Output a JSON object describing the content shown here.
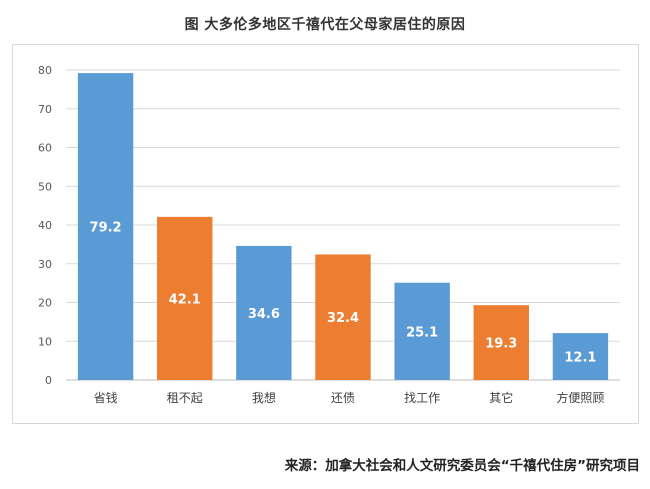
{
  "title": "图  大多伦多地区千禧代在父母家居住的原因",
  "source": {
    "label": "来源：",
    "text": "加拿大社会和人文研究委员会“千禧代住房”研究项目"
  },
  "chart_data": {
    "type": "bar",
    "categories": [
      "省钱",
      "租不起",
      "我想",
      "还债",
      "找工作",
      "其它",
      "方便照顾"
    ],
    "values": [
      79.2,
      42.1,
      34.6,
      32.4,
      25.1,
      19.3,
      12.1
    ],
    "bar_colors": [
      "#5b9bd5",
      "#ed7d31",
      "#5b9bd5",
      "#ed7d31",
      "#5b9bd5",
      "#ed7d31",
      "#5b9bd5"
    ],
    "ylim": [
      0,
      80
    ],
    "yticks": [
      0,
      10,
      20,
      30,
      40,
      50,
      60,
      70,
      80
    ],
    "grid": true,
    "data_label_color": "#ffffff"
  }
}
